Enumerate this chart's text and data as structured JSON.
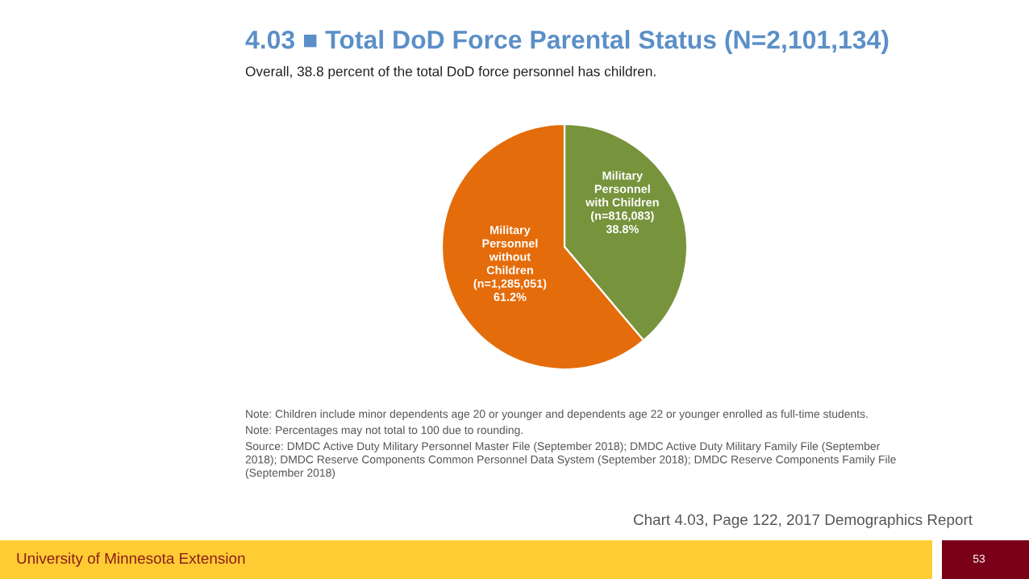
{
  "chart_data": {
    "type": "pie",
    "title": "4.03 ■ Total DoD Force Parental Status (N=2,101,134)",
    "subtitle": "Overall, 38.8 percent of the total DoD force personnel has children.",
    "categories": [
      "Military\nPersonnel\nwith Children",
      "Military\nPersonnel\nwithout\nChildren"
    ],
    "values": [
      816083,
      1285051
    ],
    "value_labels": [
      "(n=816,083)\n38.8%",
      "(n=1,285,051)\n61.2%"
    ],
    "colors": [
      "#77933c",
      "#e46c0a"
    ],
    "legend": false,
    "annotations": [
      "Note: Children include minor dependents age 20 or younger and dependents age 22 or younger enrolled as full-time students.",
      "Note: Percentages may not total to 100 due to rounding.",
      "Source: DMDC Active Duty Military Personnel Master File (September 2018); DMDC Active Duty Military Family File (September\n2018); DMDC Reserve Components Common Personnel Data System (September 2018); DMDC Reserve Components Family File\n(September 2018)",
      "Chart 4.03, Page 122, 2017 Demographics Report",
      "University of Minnesota Extension",
      "53"
    ]
  }
}
